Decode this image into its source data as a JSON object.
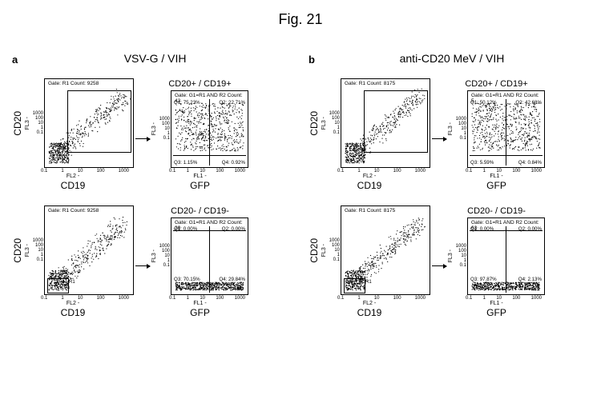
{
  "figure_title": "Fig. 21",
  "axis": {
    "y_main": "CD20",
    "x_main_left": "CD19",
    "x_main_right": "GFP",
    "fl_y": "FL3 -",
    "fl_x_left": "FL2 -",
    "fl_x_right": "FL1 -",
    "ticks": [
      "0.1",
      "1",
      "10",
      "100",
      "1000"
    ]
  },
  "styling": {
    "background_color": "#ffffff",
    "border_color": "#000000",
    "dot_color": "#000000",
    "title_fontsize": 18,
    "label_fontsize": 12,
    "smalltext_fontsize": 7
  },
  "panels": {
    "a": {
      "letter": "a",
      "title": "VSV-G / VIH",
      "rows": [
        {
          "left": {
            "gate_text": "Gate: R1 Count: 9258",
            "gate_region": "main",
            "r1_label": "R1"
          },
          "right": {
            "subtitle": "CD20+ / CD19+",
            "gate_text": "Gate: G1=R1 AND R2 Count: 43",
            "quads": {
              "Q1": "Q1: 75.23%",
              "Q2": "Q2: 22.71%",
              "Q3": "Q3: 1.15%",
              "Q4": "Q4: 0.92%"
            },
            "quad_split": {
              "x": 0.5,
              "y": 0.15
            },
            "r2_label": "R2"
          }
        },
        {
          "left": {
            "gate_text": "Gate: R1 Count: 9258",
            "gate_region": "bottom",
            "r1_label": "R1"
          },
          "right": {
            "subtitle": "CD20- / CD19-",
            "gate_text": "Gate: G1=R1 AND R2 Count: 20",
            "quads": {
              "Q1": "Q1: 0.00%",
              "Q2": "Q2: 0.00%",
              "Q3": "Q3: 70.15%",
              "Q4": "Q4: 29.84%"
            },
            "quad_split": {
              "x": 0.5,
              "y": 0.92
            },
            "r2_label": "R2"
          }
        }
      ]
    },
    "b": {
      "letter": "b",
      "title": "anti-CD20 MeV / VIH",
      "rows": [
        {
          "left": {
            "gate_text": "Gate: R1 Count: 8175",
            "gate_region": "main",
            "r1_label": "R1"
          },
          "right": {
            "subtitle": "CD20+ / CD19+",
            "gate_text": "Gate: G1=R1 AND R2 Count: 5",
            "quads": {
              "Q1": "Q1: 50.12%",
              "Q2": "Q2: 42.68%",
              "Q3": "Q3: 5.59%",
              "Q4": "Q4: 0.84%"
            },
            "quad_split": {
              "x": 0.5,
              "y": 0.15
            },
            "r2_label": "R2"
          }
        },
        {
          "left": {
            "gate_text": "Gate: R1 Count: 8175",
            "gate_region": "bottom",
            "r1_label": "R1"
          },
          "right": {
            "subtitle": "CD20- / CD19-",
            "gate_text": "Gate: G1=R1 AND R2 Count: 63",
            "quads": {
              "Q1": "Q1: 0.00%",
              "Q2": "Q2: 0.00%",
              "Q3": "Q3: 97.87%",
              "Q4": "Q4: 2.13%"
            },
            "quad_split": {
              "x": 0.5,
              "y": 0.92
            },
            "r2_label": "R2"
          }
        }
      ]
    }
  }
}
